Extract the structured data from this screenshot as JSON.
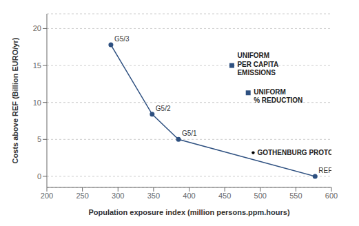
{
  "chart_data": {
    "type": "line",
    "xlabel": "Population exposure index (million persons.ppm.hours)",
    "ylabel": "Costs above REF (Billion EURO/yr)",
    "xlim": [
      200,
      600
    ],
    "ylim": [
      -1.5,
      22
    ],
    "xticks": [
      200,
      250,
      300,
      350,
      400,
      450,
      500,
      550,
      600
    ],
    "yticks": [
      0,
      5,
      10,
      15,
      20
    ],
    "grid": "y",
    "series": [
      {
        "type": "line",
        "color": "#2E5080",
        "marker": "circle",
        "x": [
          290,
          348,
          385,
          577
        ],
        "values": [
          17.8,
          8.4,
          5.0,
          0.0
        ],
        "labels": [
          "G5/3",
          "G5/2",
          "G5/1",
          "REF"
        ]
      },
      {
        "type": "scatter",
        "color": "#2E5080",
        "marker": "square",
        "x": [
          460
        ],
        "values": [
          15.0
        ],
        "labels": [
          "UNIFORM\nPER CAPITA\nEMISSIONS"
        ]
      },
      {
        "type": "scatter",
        "color": "#2E5080",
        "marker": "square",
        "x": [
          483
        ],
        "values": [
          11.3
        ],
        "labels": [
          "UNIFORM\n% REDUCTION"
        ]
      },
      {
        "type": "scatter",
        "color": "#000000",
        "marker": "point",
        "x": [
          490
        ],
        "values": [
          3.2
        ],
        "labels": [
          "GOTHENBURG PROTOCOL"
        ]
      }
    ]
  }
}
